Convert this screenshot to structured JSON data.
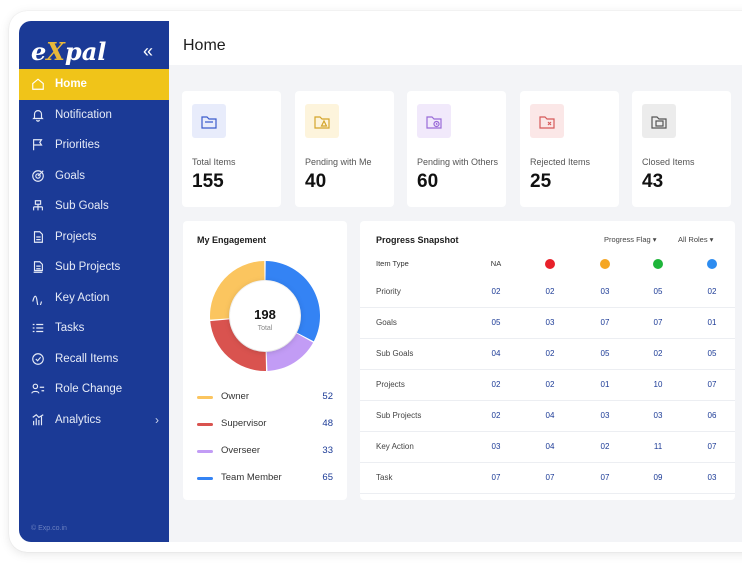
{
  "sidebar": {
    "logo_prefix": "e",
    "logo_accent": "X",
    "logo_suffix": "pal",
    "collapse_icon": "double-chevron-left-icon",
    "items": [
      {
        "label": "Home",
        "icon": "home-icon"
      },
      {
        "label": "Notification",
        "icon": "bell-icon"
      },
      {
        "label": "Priorities",
        "icon": "flag-icon"
      },
      {
        "label": "Goals",
        "icon": "target-icon"
      },
      {
        "label": "Sub Goals",
        "icon": "hierarchy-icon"
      },
      {
        "label": "Projects",
        "icon": "document-icon"
      },
      {
        "label": "Sub Projects",
        "icon": "sub-document-icon"
      },
      {
        "label": "Key Action",
        "icon": "wave-icon"
      },
      {
        "label": "Tasks",
        "icon": "list-icon"
      },
      {
        "label": "Recall Items",
        "icon": "recall-icon"
      },
      {
        "label": "Role Change",
        "icon": "role-change-icon"
      },
      {
        "label": "Analytics",
        "icon": "analytics-icon"
      }
    ],
    "active_index": 0,
    "copyright": "© Exp.co.in",
    "colors": {
      "bg": "#1b3a96",
      "active": "#f0c419"
    }
  },
  "header": {
    "title": "Home"
  },
  "stats": [
    {
      "label": "Total Items",
      "value": "155",
      "icon": "folder-icon",
      "tint": "#e8ecfb",
      "stroke": "#3b5bcc"
    },
    {
      "label": "Pending with Me",
      "value": "40",
      "icon": "folder-warning-icon",
      "tint": "#fdf4dc",
      "stroke": "#d4a52a"
    },
    {
      "label": "Pending with Others",
      "value": "60",
      "icon": "folder-clock-icon",
      "tint": "#f1e9fb",
      "stroke": "#9a6bd8"
    },
    {
      "label": "Rejected Items",
      "value": "25",
      "icon": "folder-reject-icon",
      "tint": "#fbe7e7",
      "stroke": "#d65a5a"
    },
    {
      "label": "Closed Items",
      "value": "43",
      "icon": "folder-closed-icon",
      "tint": "#ececec",
      "stroke": "#555555"
    }
  ],
  "engagement": {
    "title": "My Engagement",
    "center_value": "198",
    "center_label": "Total",
    "segments": [
      {
        "label": "Owner",
        "value": 52,
        "color": "#fbc55f"
      },
      {
        "label": "Supervisor",
        "value": 48,
        "color": "#d9534f"
      },
      {
        "label": "Overseer",
        "value": 33,
        "color": "#c29cf5"
      },
      {
        "label": "Team Member",
        "value": 65,
        "color": "#3483f4"
      }
    ]
  },
  "snapshot": {
    "title": "Progress Snapshot",
    "filter_flag": "Progress Flag ▾",
    "filter_roles": "All Roles ▾",
    "header_label": "Item Type",
    "header_na": "NA",
    "status_colors": [
      "#e8202a",
      "#f5a623",
      "#1eb53a",
      "#2d8cf0"
    ],
    "rows": [
      {
        "label": "Priority",
        "values": [
          "02",
          "02",
          "03",
          "05",
          "02"
        ]
      },
      {
        "label": "Goals",
        "values": [
          "05",
          "03",
          "07",
          "07",
          "01"
        ]
      },
      {
        "label": "Sub Goals",
        "values": [
          "04",
          "02",
          "05",
          "02",
          "05"
        ]
      },
      {
        "label": "Projects",
        "values": [
          "02",
          "02",
          "01",
          "10",
          "07"
        ]
      },
      {
        "label": "Sub Projects",
        "values": [
          "02",
          "04",
          "03",
          "03",
          "06"
        ]
      },
      {
        "label": "Key Action",
        "values": [
          "03",
          "04",
          "02",
          "11",
          "07"
        ]
      },
      {
        "label": "Task",
        "values": [
          "07",
          "07",
          "07",
          "09",
          "03"
        ]
      }
    ]
  }
}
